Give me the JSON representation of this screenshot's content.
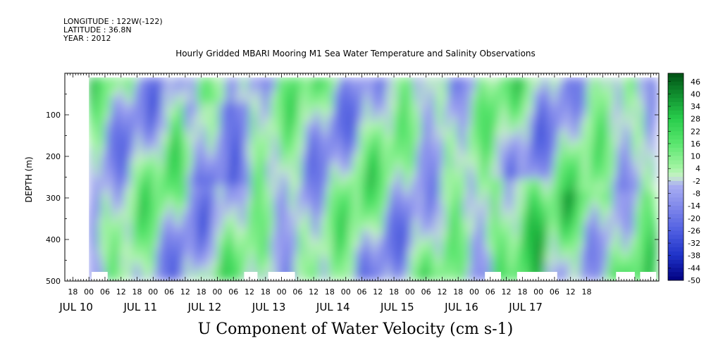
{
  "header": {
    "longitude": "LONGITUDE : 122W(-122)",
    "latitude": "LATITUDE : 36.8N",
    "year": "YEAR : 2012"
  },
  "chart_data": {
    "type": "heatmap",
    "title": "Hourly Gridded MBARI Mooring M1 Sea Water Temperature and Salinity Observations",
    "xlabel": "U Component of Water Velocity (cm s-1)",
    "ylabel": "DEPTH (m)",
    "ylim": [
      500,
      0
    ],
    "yticks": [
      100,
      200,
      300,
      400,
      500
    ],
    "xlim_hours": [
      -9,
      213
    ],
    "hour_ticks": [
      "18",
      "00",
      "06",
      "12",
      "18",
      "00",
      "06",
      "12",
      "18",
      "00",
      "06",
      "12",
      "18",
      "00",
      "06",
      "12",
      "18",
      "00",
      "06",
      "12",
      "18",
      "00",
      "06",
      "12",
      "18",
      "00",
      "06",
      "12",
      "18",
      "00",
      "06",
      "12",
      "18"
    ],
    "day_labels": [
      "JUL 10",
      "JUL 11",
      "JUL 12",
      "JUL 13",
      "JUL 14",
      "JUL 15",
      "JUL 16",
      "JUL 17"
    ],
    "colorbar_ticks": [
      46,
      40,
      34,
      28,
      22,
      16,
      10,
      4,
      -2,
      -8,
      -14,
      -20,
      -26,
      -32,
      -38,
      -44,
      -50
    ],
    "colorbar_range": [
      -50,
      50
    ],
    "data_start_hour": 0,
    "data_depth_range": [
      10,
      485
    ],
    "colors": {
      "strong_negative": "#000080",
      "negative": "#6f78e6",
      "weak_negative": "#a7abef",
      "weak_positive": "#9ef29e",
      "positive": "#33dd55",
      "strong_positive": "#005a1a"
    }
  }
}
